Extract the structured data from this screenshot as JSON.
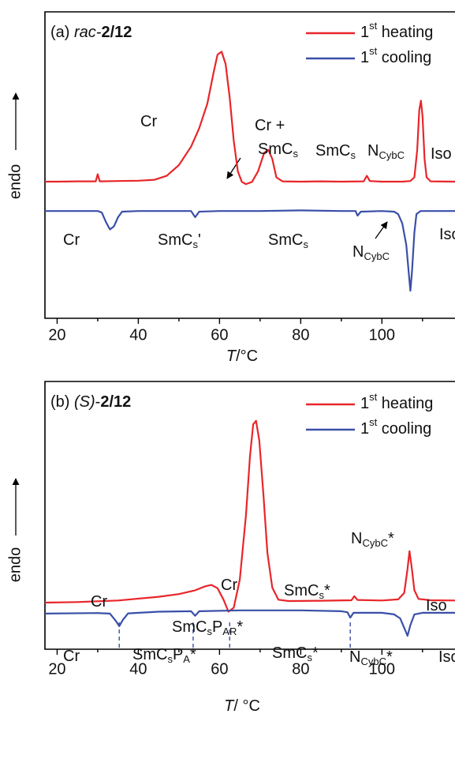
{
  "chart_data": [
    {
      "type": "line",
      "title": [
        "(a) ",
        {
          "i": "rac-"
        },
        {
          "b": "2/12"
        }
      ],
      "xlabel": [
        {
          "i": "T"
        },
        "/°C"
      ],
      "ylabel": "endo",
      "xlim": [
        17,
        118
      ],
      "ylim": [
        0,
        100
      ],
      "xticks": [
        20,
        40,
        60,
        80,
        100
      ],
      "minor_xticks": [
        30,
        50,
        70,
        90,
        110
      ],
      "legend": "upper right",
      "series": [
        {
          "name": [
            "1",
            {
              "sup": "st"
            },
            " heating"
          ],
          "color": "#e8262a",
          "x": [
            17,
            20,
            25,
            29.5,
            30,
            30.5,
            35,
            40,
            44,
            47,
            50,
            53,
            55,
            57,
            58.5,
            59.5,
            60.5,
            61.5,
            62.5,
            63.5,
            64.5,
            65.5,
            66.5,
            68,
            69.5,
            71,
            72,
            73,
            74,
            75.5,
            80,
            85,
            90,
            95.5,
            96.3,
            97,
            100,
            105,
            107,
            108,
            108.7,
            109.2,
            109.6,
            110,
            110.5,
            111,
            112,
            118
          ],
          "values": [
            44.6,
            44.6,
            44.7,
            44.7,
            47,
            44.7,
            44.8,
            44.9,
            45.2,
            46.5,
            50,
            56,
            62,
            70,
            80,
            86,
            87,
            83,
            72,
            58,
            48,
            44.5,
            43.8,
            44.5,
            48,
            54,
            55,
            52,
            46,
            44.7,
            44.6,
            44.7,
            44.6,
            44.7,
            46.5,
            44.8,
            44.6,
            44.6,
            44.8,
            46,
            55,
            68,
            71,
            66,
            52,
            46,
            44.7,
            44.6
          ]
        },
        {
          "name": [
            "1",
            {
              "sup": "st"
            },
            " cooling"
          ],
          "color": "#3a4fa8",
          "x": [
            17,
            30,
            31,
            32,
            33,
            34,
            35,
            36,
            40,
            50,
            53,
            54,
            55,
            60,
            70,
            80,
            90,
            93.5,
            94,
            94.8,
            100,
            103,
            104,
            105,
            106,
            106.6,
            107,
            107.4,
            108,
            108.5,
            109.5,
            118
          ],
          "values": [
            35,
            35,
            34.5,
            31.5,
            29,
            30,
            33,
            34.8,
            35,
            35,
            35,
            33,
            34.8,
            35,
            35,
            35.2,
            35,
            35,
            33.5,
            34.8,
            35,
            34.8,
            34,
            31,
            24,
            15,
            9,
            15,
            28,
            34,
            35,
            35
          ]
        }
      ],
      "annotations": [
        [
          "Cr"
        ],
        [
          "Cr +"
        ],
        [
          "SmC",
          {
            "sub": "s"
          }
        ],
        [
          "SmC",
          {
            "sub": "s"
          }
        ],
        [
          "N",
          {
            "sub": "CybC"
          }
        ],
        [
          "Iso"
        ],
        [
          "Cr"
        ],
        [
          "SmC",
          {
            "sub": "s"
          },
          "'"
        ],
        [
          "SmC",
          {
            "sub": "s"
          }
        ],
        [
          "N",
          {
            "sub": "CybC"
          }
        ],
        [
          "Iso"
        ]
      ]
    },
    {
      "type": "line",
      "title": [
        "(b) ",
        {
          "i": "(S)"
        },
        "-",
        {
          "b": "2/12"
        }
      ],
      "xlabel": [
        {
          "i": "T"
        },
        "/ °C"
      ],
      "ylabel": "endo",
      "xlim": [
        17,
        118
      ],
      "ylim": [
        0,
        100
      ],
      "xticks": [
        20,
        40,
        60,
        80,
        100
      ],
      "minor_xticks": [
        30,
        50,
        70,
        90,
        110
      ],
      "legend": "upper right",
      "series": [
        {
          "name": [
            "1",
            {
              "sup": "st"
            },
            " heating"
          ],
          "color": "#e8262a",
          "x": [
            17,
            25,
            35,
            45,
            50,
            54,
            56.5,
            58,
            59.5,
            61,
            62.2,
            63.5,
            65,
            66.5,
            67.5,
            68.3,
            69,
            69.8,
            70.8,
            71.8,
            73,
            74.5,
            77,
            85,
            92.5,
            93.2,
            94,
            100,
            104,
            105.5,
            106.3,
            106.8,
            107.3,
            108,
            109,
            112,
            118
          ],
          "values": [
            17.4,
            17.6,
            18.2,
            19.6,
            20.6,
            22,
            23.5,
            24,
            22.8,
            18.5,
            14,
            15.5,
            26,
            50,
            72,
            84,
            85.3,
            78,
            58,
            36,
            23,
            18.5,
            18,
            18.1,
            18.3,
            19.8,
            18.4,
            18.2,
            18.6,
            21,
            30,
            36.6,
            31,
            22,
            18.8,
            18.3,
            18.2
          ]
        },
        {
          "name": [
            "1",
            {
              "sup": "st"
            },
            " cooling"
          ],
          "color": "#3a4fa8",
          "x": [
            17,
            30,
            33,
            34.5,
            35.3,
            36.2,
            37.5,
            45,
            53,
            54,
            55,
            65,
            80,
            90,
            91.5,
            92.2,
            93,
            100,
            103,
            104.5,
            105.5,
            106.3,
            107,
            108,
            110,
            118
          ],
          "values": [
            13.3,
            13.5,
            13.3,
            10.5,
            8.6,
            11,
            13.4,
            14,
            14.2,
            12.5,
            14.2,
            14.5,
            14.5,
            14.2,
            13.8,
            11.8,
            13.6,
            13.6,
            13,
            11.5,
            8,
            5,
            9,
            13,
            13.6,
            13.6
          ]
        }
      ],
      "transitions": [
        35.3,
        53.5,
        62.5,
        92.2
      ],
      "transition_color": "#3a4fa8",
      "annotations": [
        [
          "Cr"
        ],
        [
          "Cr"
        ],
        [
          "SmC",
          {
            "sub": "s"
          },
          "*"
        ],
        [
          "N",
          {
            "sub": "CybC"
          },
          "*"
        ],
        [
          "Iso"
        ],
        [
          "Cr"
        ],
        [
          "SmC",
          {
            "sub": "s"
          },
          "P",
          {
            "sub": "AR"
          },
          "*"
        ],
        [
          "SmC",
          {
            "sub": "s"
          },
          "P",
          {
            "sub": "A"
          },
          "*"
        ],
        [
          "SmC",
          {
            "sub": "s"
          },
          "*"
        ],
        [
          "N",
          {
            "sub": "CybC"
          },
          "*"
        ],
        [
          "Iso"
        ]
      ]
    }
  ]
}
